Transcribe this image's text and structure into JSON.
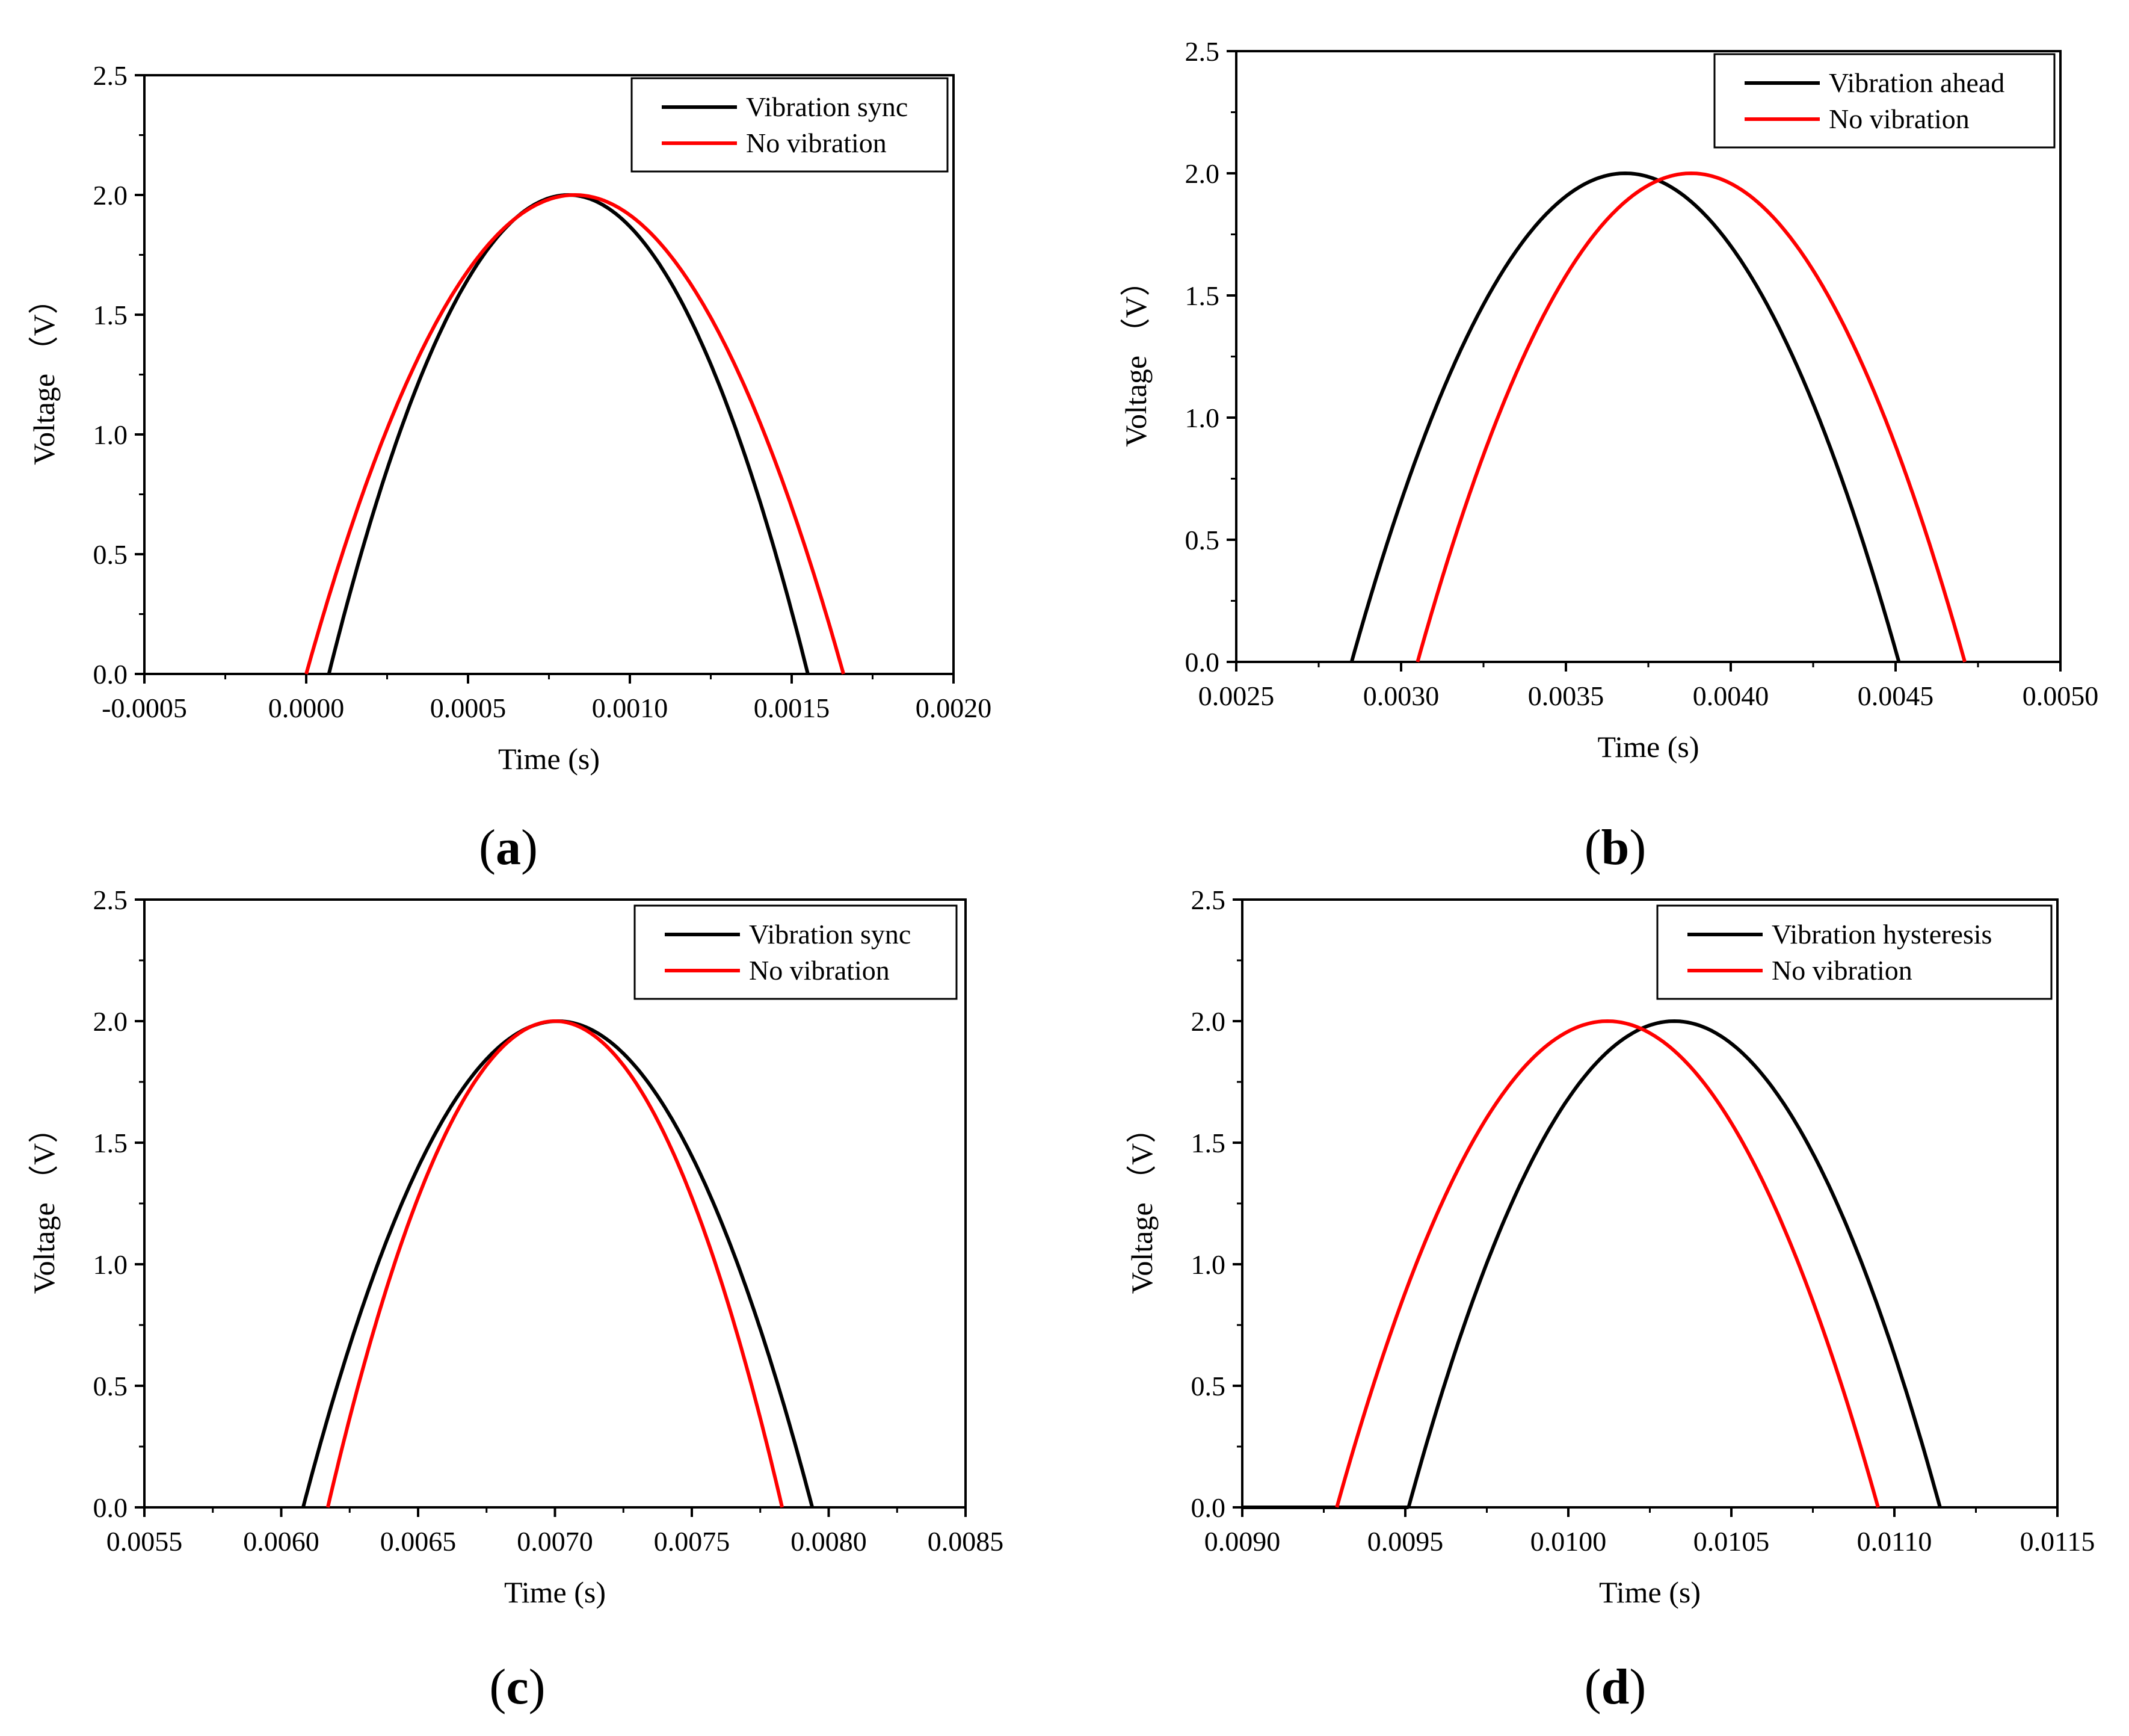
{
  "figure": {
    "panels": [
      {
        "caption_open": "(",
        "caption_letter": "a",
        "caption_close": ")"
      },
      {
        "caption_open": "(",
        "caption_letter": "b",
        "caption_close": ")"
      },
      {
        "caption_open": "(",
        "caption_letter": "c",
        "caption_close": ")"
      },
      {
        "caption_open": "(",
        "caption_letter": "d",
        "caption_close": ")"
      }
    ]
  },
  "colors": {
    "black": "#000000",
    "red": "#ff0000"
  },
  "chart_data": [
    {
      "type": "line",
      "title": "",
      "xlabel": "Time (s)",
      "ylabel": "Voltage （V）",
      "xlim": [
        -0.0005,
        0.002
      ],
      "ylim": [
        0,
        2.5
      ],
      "xticks": [
        -0.0005,
        0,
        0.0005,
        0.001,
        0.0015,
        0.002
      ],
      "xtick_labels": [
        "-0.0005",
        "0.0000",
        "0.0005",
        "0.0010",
        "0.0015",
        "0.0020"
      ],
      "yticks": [
        0,
        0.5,
        1,
        1.5,
        2,
        2.5
      ],
      "ytick_labels": [
        "0.0",
        "0.5",
        "1.0",
        "1.5",
        "2.0",
        "2.5"
      ],
      "legend_position": "top-right",
      "series": [
        {
          "name": "Vibration sync",
          "color": "#000000",
          "start": 7e-05,
          "end": 0.00155,
          "peak": 2.0,
          "baseline_from": null,
          "baseline_to": null
        },
        {
          "name": "No vibration",
          "color": "#ff0000",
          "start": 0.0,
          "end": 0.00166,
          "peak": 2.0,
          "baseline_from": null,
          "baseline_to": null
        }
      ]
    },
    {
      "type": "line",
      "title": "",
      "xlabel": "Time (s)",
      "ylabel": "Voltage （V）",
      "xlim": [
        0.0025,
        0.005
      ],
      "ylim": [
        0,
        2.5
      ],
      "xticks": [
        0.0025,
        0.003,
        0.0035,
        0.004,
        0.0045,
        0.005
      ],
      "xtick_labels": [
        "0.0025",
        "0.0030",
        "0.0035",
        "0.0040",
        "0.0045",
        "0.0050"
      ],
      "yticks": [
        0,
        0.5,
        1,
        1.5,
        2,
        2.5
      ],
      "ytick_labels": [
        "0.0",
        "0.5",
        "1.0",
        "1.5",
        "2.0",
        "2.5"
      ],
      "legend_position": "top-right",
      "series": [
        {
          "name": "Vibration ahead",
          "color": "#000000",
          "start": 0.00285,
          "end": 0.00451,
          "peak": 2.0,
          "baseline_from": null,
          "baseline_to": null
        },
        {
          "name": "No vibration",
          "color": "#ff0000",
          "start": 0.00305,
          "end": 0.00471,
          "peak": 2.0,
          "baseline_from": null,
          "baseline_to": null
        }
      ]
    },
    {
      "type": "line",
      "title": "",
      "xlabel": "Time (s)",
      "ylabel": "Voltage （V）",
      "xlim": [
        0.0055,
        0.0085
      ],
      "ylim": [
        0,
        2.5
      ],
      "xticks": [
        0.0055,
        0.006,
        0.0065,
        0.007,
        0.0075,
        0.008,
        0.0085
      ],
      "xtick_labels": [
        "0.0055",
        "0.0060",
        "0.0065",
        "0.0070",
        "0.0075",
        "0.0080",
        "0.0085"
      ],
      "yticks": [
        0,
        0.5,
        1,
        1.5,
        2,
        2.5
      ],
      "ytick_labels": [
        "0.0",
        "0.5",
        "1.0",
        "1.5",
        "2.0",
        "2.5"
      ],
      "legend_position": "top-right",
      "series": [
        {
          "name": "Vibration sync",
          "color": "#000000",
          "start": 0.00608,
          "end": 0.00794,
          "peak": 2.0,
          "baseline_from": null,
          "baseline_to": null
        },
        {
          "name": "No vibration",
          "color": "#ff0000",
          "start": 0.00617,
          "end": 0.00783,
          "peak": 2.0,
          "baseline_from": null,
          "baseline_to": null
        }
      ]
    },
    {
      "type": "line",
      "title": "",
      "xlabel": "Time (s)",
      "ylabel": "Voltage （V）",
      "xlim": [
        0.009,
        0.0115
      ],
      "ylim": [
        0,
        2.5
      ],
      "xticks": [
        0.009,
        0.0095,
        0.01,
        0.0105,
        0.011,
        0.0115
      ],
      "xtick_labels": [
        "0.0090",
        "0.0095",
        "0.0100",
        "0.0105",
        "0.0110",
        "0.0115"
      ],
      "yticks": [
        0,
        0.5,
        1,
        1.5,
        2,
        2.5
      ],
      "ytick_labels": [
        "0.0",
        "0.5",
        "1.0",
        "1.5",
        "2.0",
        "2.5"
      ],
      "legend_position": "top-right",
      "series": [
        {
          "name": "Vibration hysteresis",
          "color": "#000000",
          "start": 0.00951,
          "end": 0.01114,
          "peak": 2.0,
          "baseline_from": 0.009,
          "baseline_to": 0.00951
        },
        {
          "name": "No vibration",
          "color": "#ff0000",
          "start": 0.00929,
          "end": 0.01095,
          "peak": 2.0,
          "baseline_from": null,
          "baseline_to": null
        }
      ]
    }
  ]
}
